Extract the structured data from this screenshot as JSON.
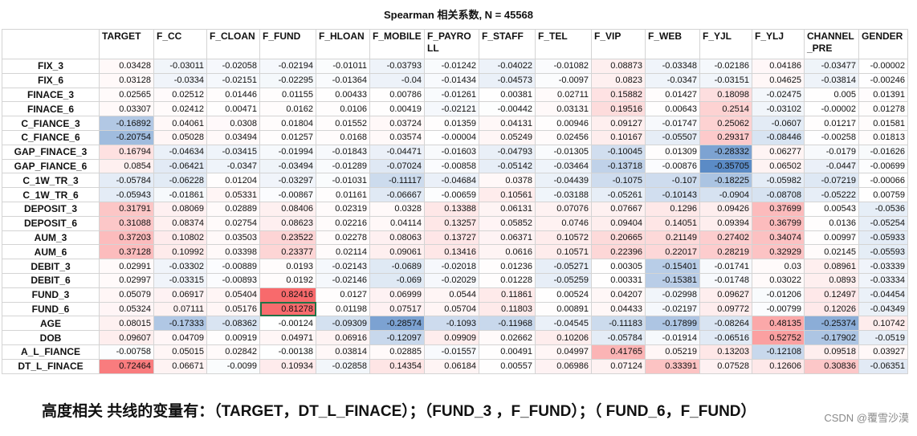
{
  "title": "Spearman 相关系数, N = 45568",
  "conclusion": "高度相关 共线的变量有：（TARGET，DT_L_FINACE）；（FUND_3 ，F_FUND）；（ FUND_6，F_FUND）",
  "watermark": "CSDN @覆雪沙漠",
  "colors": {
    "positive": "#f8696b",
    "negative": "#5a8ac6",
    "neutral": "#ffffff",
    "selection": "#217346"
  },
  "chart_data": {
    "type": "heatmap",
    "columns": [
      "TARGET",
      "F_CC",
      "F_CLOAN",
      "F_FUND",
      "F_HLOAN",
      "F_MOBILE",
      "F_PAYROLL",
      "F_STAFF",
      "F_TEL",
      "F_VIP",
      "F_WEB",
      "F_YJL",
      "F_YLJ",
      "CHANNEL_PRE",
      "GENDER"
    ],
    "rows": [
      {
        "name": "FIX_3",
        "values": [
          "0.03428",
          "-0.03011",
          "-0.02058",
          "-0.02194",
          "-0.01011",
          "-0.03793",
          "-0.01242",
          "-0.04022",
          "-0.01082",
          "0.08873",
          "-0.03348",
          "-0.02186",
          "0.04186",
          "-0.03477",
          "-0.00002"
        ]
      },
      {
        "name": "FIX_6",
        "values": [
          "0.03128",
          "-0.0334",
          "-0.02151",
          "-0.02295",
          "-0.01364",
          "-0.04",
          "-0.01434",
          "-0.04573",
          "-0.0097",
          "0.0823",
          "-0.0347",
          "-0.03151",
          "0.04625",
          "-0.03814",
          "-0.00246"
        ]
      },
      {
        "name": "FINACE_3",
        "values": [
          "0.02565",
          "0.02512",
          "0.01446",
          "0.01155",
          "0.00433",
          "0.00786",
          "-0.01261",
          "0.00381",
          "0.02711",
          "0.15882",
          "0.01427",
          "0.18098",
          "-0.02475",
          "0.005",
          "0.01391"
        ]
      },
      {
        "name": "FINACE_6",
        "values": [
          "0.03307",
          "0.02412",
          "0.00471",
          "0.0162",
          "0.0106",
          "0.00419",
          "-0.02121",
          "-0.00442",
          "0.03131",
          "0.19516",
          "0.00643",
          "0.2514",
          "-0.03102",
          "-0.00002",
          "0.01278"
        ]
      },
      {
        "name": "C_FIANCE_3",
        "values": [
          "-0.16892",
          "0.04061",
          "0.0308",
          "0.01804",
          "0.01552",
          "0.03724",
          "0.01359",
          "0.04131",
          "0.00946",
          "0.09127",
          "-0.01747",
          "0.25062",
          "-0.0607",
          "0.01217",
          "0.01581"
        ]
      },
      {
        "name": "C_FIANCE_6",
        "values": [
          "-0.20754",
          "0.05028",
          "0.03494",
          "0.01257",
          "0.0168",
          "0.03574",
          "-0.00004",
          "0.05249",
          "0.02456",
          "0.10167",
          "-0.05507",
          "0.29317",
          "-0.08446",
          "-0.00258",
          "0.01813"
        ]
      },
      {
        "name": "GAP_FINACE_3",
        "values": [
          "0.16794",
          "-0.04634",
          "-0.03415",
          "-0.01994",
          "-0.01843",
          "-0.04471",
          "-0.01603",
          "-0.04793",
          "-0.01305",
          "-0.10045",
          "0.01309",
          "-0.28332",
          "0.06277",
          "-0.0179",
          "-0.01626"
        ]
      },
      {
        "name": "GAP_FIANCE_6",
        "values": [
          "0.0854",
          "-0.06421",
          "-0.0347",
          "-0.03494",
          "-0.01289",
          "-0.07024",
          "-0.00858",
          "-0.05142",
          "-0.03464",
          "-0.13718",
          "-0.00876",
          "-0.35705",
          "0.06502",
          "-0.0447",
          "-0.00699"
        ]
      },
      {
        "name": "C_1W_TR_3",
        "values": [
          "-0.05784",
          "-0.06228",
          "0.01204",
          "-0.03297",
          "-0.01031",
          "-0.11117",
          "-0.04684",
          "0.0378",
          "-0.04439",
          "-0.1075",
          "-0.107",
          "-0.18225",
          "-0.05982",
          "-0.07219",
          "-0.00066"
        ]
      },
      {
        "name": "C_1W_TR_6",
        "values": [
          "-0.05943",
          "-0.01861",
          "0.05331",
          "-0.00867",
          "0.01161",
          "-0.06667",
          "-0.00659",
          "0.10561",
          "-0.03188",
          "-0.05261",
          "-0.10143",
          "-0.0904",
          "-0.08708",
          "-0.05222",
          "0.00759"
        ]
      },
      {
        "name": "DEPOSIT_3",
        "values": [
          "0.31791",
          "0.08069",
          "0.02889",
          "0.08406",
          "0.02319",
          "0.0328",
          "0.13388",
          "0.06131",
          "0.07076",
          "0.07667",
          "0.1296",
          "0.09426",
          "0.37699",
          "0.00543",
          "-0.0536"
        ]
      },
      {
        "name": "DEPOSIT_6",
        "values": [
          "0.31088",
          "0.08374",
          "0.02754",
          "0.08623",
          "0.02216",
          "0.04114",
          "0.13257",
          "0.05852",
          "0.0746",
          "0.09404",
          "0.14051",
          "0.09394",
          "0.36799",
          "0.0136",
          "-0.05254"
        ]
      },
      {
        "name": "AUM_3",
        "values": [
          "0.37203",
          "0.10802",
          "0.03503",
          "0.23522",
          "0.02278",
          "0.08063",
          "0.13727",
          "0.06371",
          "0.10572",
          "0.20665",
          "0.21149",
          "0.27402",
          "0.34074",
          "0.00997",
          "-0.05933"
        ]
      },
      {
        "name": "AUM_6",
        "values": [
          "0.37128",
          "0.10992",
          "0.03398",
          "0.23377",
          "0.02114",
          "0.09061",
          "0.13416",
          "0.0616",
          "0.10571",
          "0.22396",
          "0.22017",
          "0.28219",
          "0.32929",
          "0.02145",
          "-0.05593"
        ]
      },
      {
        "name": "DEBIT_3",
        "values": [
          "0.02991",
          "-0.03302",
          "-0.00889",
          "0.0193",
          "-0.02143",
          "-0.0689",
          "-0.02018",
          "0.01236",
          "-0.05271",
          "0.00305",
          "-0.15401",
          "-0.01741",
          "0.03",
          "0.08961",
          "-0.03339"
        ]
      },
      {
        "name": "DEBIT_6",
        "values": [
          "0.02997",
          "-0.03315",
          "-0.00893",
          "0.0192",
          "-0.02146",
          "-0.069",
          "-0.02029",
          "0.01228",
          "-0.05259",
          "0.00331",
          "-0.15381",
          "-0.01748",
          "0.03022",
          "0.0893",
          "-0.03334"
        ]
      },
      {
        "name": "FUND_3",
        "values": [
          "0.05079",
          "0.06917",
          "0.05404",
          "0.82416",
          "0.0127",
          "0.06999",
          "0.0544",
          "0.11861",
          "0.00524",
          "0.04207",
          "-0.02998",
          "0.09627",
          "-0.01206",
          "0.12497",
          "-0.04454"
        ]
      },
      {
        "name": "FUND_6",
        "values": [
          "0.05324",
          "0.07111",
          "0.05176",
          "0.81278",
          "0.01198",
          "0.07517",
          "0.05704",
          "0.11803",
          "0.00891",
          "0.04433",
          "-0.02197",
          "0.09772",
          "-0.00799",
          "0.12026",
          "-0.04349"
        ]
      },
      {
        "name": "AGE",
        "values": [
          "0.08015",
          "-0.17333",
          "-0.08362",
          "-0.00124",
          "-0.09309",
          "-0.28574",
          "-0.1093",
          "-0.11968",
          "-0.04545",
          "-0.11183",
          "-0.17899",
          "-0.08264",
          "0.48135",
          "-0.25374",
          "0.10742"
        ]
      },
      {
        "name": "DOB",
        "values": [
          "0.09607",
          "0.04709",
          "0.00919",
          "0.04971",
          "0.06916",
          "-0.12097",
          "0.09909",
          "0.02662",
          "0.10206",
          "-0.05784",
          "-0.01914",
          "-0.06516",
          "0.52752",
          "-0.17902",
          "-0.0519"
        ]
      },
      {
        "name": "A_L_FIANCE",
        "values": [
          "-0.00758",
          "0.05015",
          "0.02842",
          "-0.00138",
          "0.03814",
          "0.02885",
          "-0.01557",
          "0.00491",
          "0.04997",
          "0.41765",
          "0.05219",
          "0.13203",
          "-0.12108",
          "0.09518",
          "0.03927"
        ]
      },
      {
        "name": "DT_L_FINACE",
        "values": [
          "0.72464",
          "0.06671",
          "-0.0099",
          "0.10934",
          "-0.02858",
          "0.14354",
          "0.06184",
          "0.00557",
          "0.06986",
          "0.07124",
          "0.33391",
          "0.07528",
          "0.12606",
          "0.30836",
          "-0.06351"
        ]
      }
    ],
    "color_scale": {
      "min": -0.36,
      "max": 0.83,
      "center": 0
    },
    "selected_cell": {
      "row": "FUND_6",
      "column": "F_FUND"
    }
  }
}
